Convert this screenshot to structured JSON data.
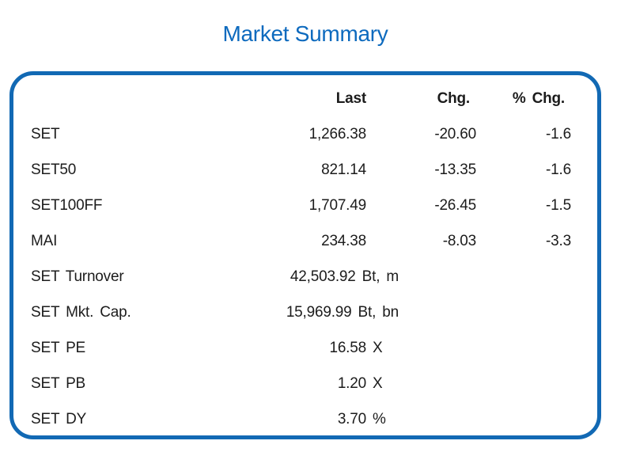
{
  "title": "Market Summary",
  "colors": {
    "accent_blue": "#0d6abe",
    "border_blue": "#1269b4",
    "text": "#1c1c1c"
  },
  "chart_data": {
    "type": "table",
    "title": "Market Summary",
    "columns": {
      "label": "",
      "last": "Last",
      "chg": "Chg.",
      "pct": "% Chg."
    },
    "rows": [
      {
        "label": "SET",
        "last": "1,266.38",
        "unit": "",
        "chg": "-20.60",
        "pct": "-1.6"
      },
      {
        "label": "SET50",
        "last": "821.14",
        "unit": "",
        "chg": "-13.35",
        "pct": "-1.6"
      },
      {
        "label": "SET100FF",
        "last": "1,707.49",
        "unit": "",
        "chg": "-26.45",
        "pct": "-1.5"
      },
      {
        "label": "MAI",
        "last": "234.38",
        "unit": "",
        "chg": "-8.03",
        "pct": "-3.3"
      },
      {
        "label": "SET Turnover",
        "last": "42,503.92",
        "unit": "Bt, m",
        "chg": "",
        "pct": ""
      },
      {
        "label": "SET Mkt. Cap.",
        "last": "15,969.99",
        "unit": "Bt, bn",
        "chg": "",
        "pct": ""
      },
      {
        "label": "SET PE",
        "last": "16.58",
        "unit": "X",
        "chg": "",
        "pct": ""
      },
      {
        "label": "SET PB",
        "last": "1.20",
        "unit": "X",
        "chg": "",
        "pct": ""
      },
      {
        "label": "SET DY",
        "last": "3.70",
        "unit": "%",
        "chg": "",
        "pct": ""
      }
    ]
  }
}
